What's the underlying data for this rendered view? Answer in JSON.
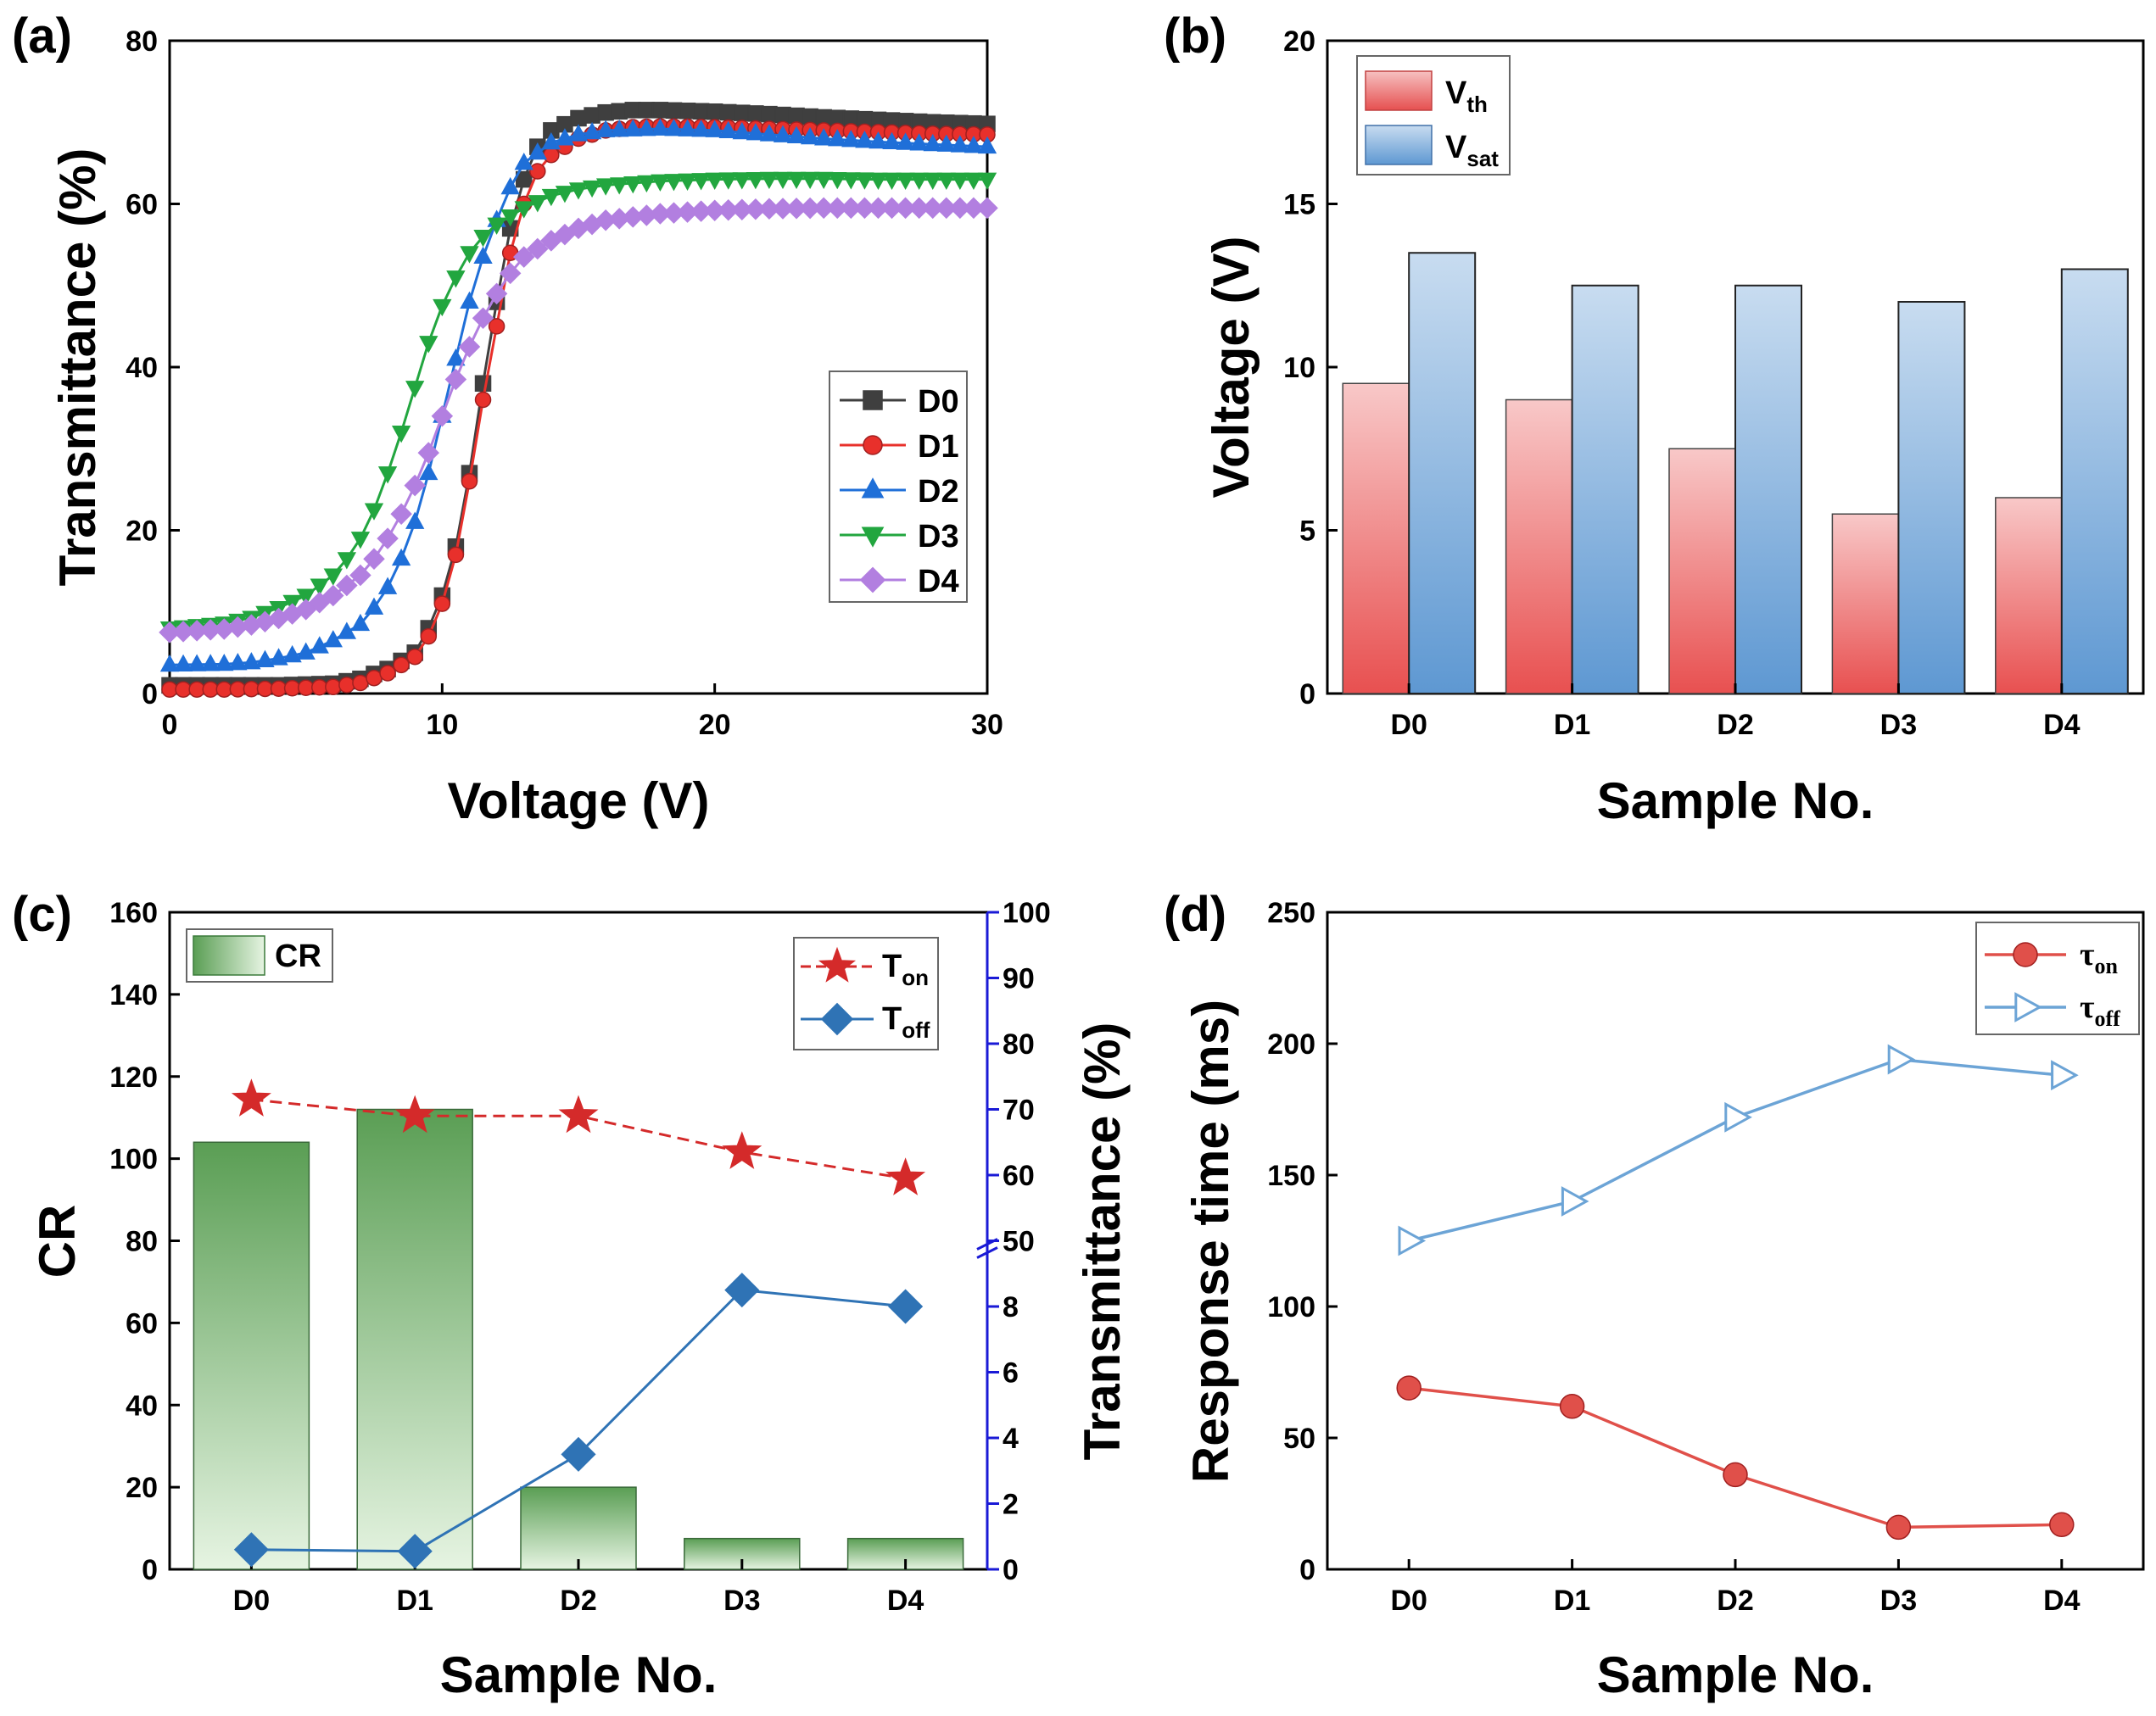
{
  "colors": {
    "D0": "#3f3f3f",
    "D1": "#e8302b",
    "D2": "#1f6fd8",
    "D3": "#22a63f",
    "D4": "#b27fe0",
    "vth": "#e85a5a",
    "vsat": "#6a9fd3",
    "cr": "#5aa25a",
    "ton": "#d42a2a",
    "toff": "#2f73b5",
    "tau_on": "#e0504a",
    "tau_off": "#6ca4d6",
    "right_axis": "#1a1ad6"
  },
  "chart_data": [
    {
      "panel": "(a)",
      "type": "line",
      "xlabel": "Voltage (V)",
      "ylabel": "Transmittance (%)",
      "xlim": [
        0,
        30
      ],
      "ylim": [
        0,
        80
      ],
      "xticks": [
        "0",
        "10",
        "20",
        "30"
      ],
      "yticks": [
        "0",
        "20",
        "40",
        "60",
        "80"
      ],
      "legend_position": "center-right",
      "series": [
        {
          "name": "D0",
          "marker": "square",
          "points": [
            [
              0,
              1
            ],
            [
              2,
              1
            ],
            [
              4,
              1
            ],
            [
              6,
              1.2
            ],
            [
              7,
              1.8
            ],
            [
              8,
              3
            ],
            [
              9,
              5
            ],
            [
              9.5,
              8
            ],
            [
              10,
              12
            ],
            [
              10.5,
              18
            ],
            [
              11,
              27
            ],
            [
              11.5,
              38
            ],
            [
              12,
              48
            ],
            [
              12.5,
              57
            ],
            [
              13,
              63
            ],
            [
              13.5,
              67
            ],
            [
              14,
              69
            ],
            [
              15,
              70.5
            ],
            [
              16,
              71.2
            ],
            [
              17,
              71.5
            ],
            [
              18,
              71.5
            ],
            [
              20,
              71.3
            ],
            [
              22,
              71
            ],
            [
              24,
              70.6
            ],
            [
              26,
              70.3
            ],
            [
              28,
              70
            ],
            [
              30,
              69.8
            ]
          ]
        },
        {
          "name": "D1",
          "marker": "circle",
          "points": [
            [
              0,
              0.5
            ],
            [
              2,
              0.5
            ],
            [
              4,
              0.6
            ],
            [
              6,
              0.8
            ],
            [
              7,
              1.3
            ],
            [
              8,
              2.5
            ],
            [
              9,
              4.5
            ],
            [
              9.5,
              7
            ],
            [
              10,
              11
            ],
            [
              10.5,
              17
            ],
            [
              11,
              26
            ],
            [
              11.5,
              36
            ],
            [
              12,
              45
            ],
            [
              12.5,
              54
            ],
            [
              13,
              60
            ],
            [
              13.5,
              64
            ],
            [
              14,
              66
            ],
            [
              15,
              68
            ],
            [
              16,
              69
            ],
            [
              17,
              69.4
            ],
            [
              18,
              69.5
            ],
            [
              20,
              69.4
            ],
            [
              22,
              69.2
            ],
            [
              24,
              69
            ],
            [
              26,
              68.8
            ],
            [
              28,
              68.6
            ],
            [
              30,
              68.5
            ]
          ]
        },
        {
          "name": "D2",
          "marker": "triangle-up",
          "points": [
            [
              0,
              3.5
            ],
            [
              2,
              3.6
            ],
            [
              3,
              3.8
            ],
            [
              4,
              4.3
            ],
            [
              5,
              5
            ],
            [
              6,
              6.5
            ],
            [
              7,
              8.5
            ],
            [
              7.5,
              10.5
            ],
            [
              8,
              13
            ],
            [
              8.5,
              16.5
            ],
            [
              9,
              21
            ],
            [
              9.5,
              27
            ],
            [
              10,
              34
            ],
            [
              10.5,
              41
            ],
            [
              11,
              48
            ],
            [
              11.5,
              53.5
            ],
            [
              12,
              58
            ],
            [
              12.5,
              62
            ],
            [
              13,
              65
            ],
            [
              14,
              67.5
            ],
            [
              15,
              68.5
            ],
            [
              16,
              69
            ],
            [
              18,
              69.2
            ],
            [
              20,
              69
            ],
            [
              22,
              68.5
            ],
            [
              24,
              68
            ],
            [
              26,
              67.6
            ],
            [
              28,
              67.3
            ],
            [
              30,
              67
            ]
          ]
        },
        {
          "name": "D3",
          "marker": "triangle-down",
          "points": [
            [
              0,
              8
            ],
            [
              2,
              8.6
            ],
            [
              3,
              9.3
            ],
            [
              4,
              10.5
            ],
            [
              5,
              12
            ],
            [
              6,
              14.5
            ],
            [
              6.5,
              16.5
            ],
            [
              7,
              19
            ],
            [
              7.5,
              22.5
            ],
            [
              8,
              27
            ],
            [
              8.5,
              32
            ],
            [
              9,
              37.5
            ],
            [
              9.5,
              43
            ],
            [
              10,
              47.5
            ],
            [
              10.5,
              51
            ],
            [
              11,
              54
            ],
            [
              11.5,
              56
            ],
            [
              12,
              57.5
            ],
            [
              13,
              59.5
            ],
            [
              14,
              61
            ],
            [
              15,
              61.8
            ],
            [
              16,
              62.3
            ],
            [
              18,
              62.8
            ],
            [
              20,
              63
            ],
            [
              22,
              63.1
            ],
            [
              24,
              63.1
            ],
            [
              26,
              63
            ],
            [
              28,
              63
            ],
            [
              30,
              63
            ]
          ]
        },
        {
          "name": "D4",
          "marker": "diamond",
          "points": [
            [
              0,
              7.5
            ],
            [
              2,
              7.9
            ],
            [
              3,
              8.4
            ],
            [
              4,
              9.2
            ],
            [
              5,
              10.3
            ],
            [
              6,
              12
            ],
            [
              7,
              14.5
            ],
            [
              7.5,
              16.5
            ],
            [
              8,
              19
            ],
            [
              8.5,
              22
            ],
            [
              9,
              25.5
            ],
            [
              9.5,
              29.5
            ],
            [
              10,
              34
            ],
            [
              10.5,
              38.5
            ],
            [
              11,
              42.5
            ],
            [
              11.5,
              46
            ],
            [
              12,
              49
            ],
            [
              12.5,
              51.5
            ],
            [
              13,
              53.5
            ],
            [
              14,
              55.5
            ],
            [
              15,
              57
            ],
            [
              16,
              58
            ],
            [
              18,
              58.8
            ],
            [
              20,
              59.2
            ],
            [
              22,
              59.4
            ],
            [
              24,
              59.5
            ],
            [
              26,
              59.5
            ],
            [
              28,
              59.5
            ],
            [
              30,
              59.5
            ]
          ]
        }
      ]
    },
    {
      "panel": "(b)",
      "type": "bar",
      "xlabel": "Sample No.",
      "ylabel": "Voltage (V)",
      "ylim": [
        0,
        20
      ],
      "yticks": [
        "0",
        "5",
        "10",
        "15",
        "20"
      ],
      "categories": [
        "D0",
        "D1",
        "D2",
        "D3",
        "D4"
      ],
      "legend_position": "top-left",
      "series": [
        {
          "name": "V",
          "sub": "th",
          "values": [
            9.5,
            9.0,
            7.5,
            5.5,
            6.0
          ]
        },
        {
          "name": "V",
          "sub": "sat",
          "values": [
            13.5,
            12.5,
            12.5,
            12.0,
            13.0
          ]
        }
      ]
    },
    {
      "panel": "(c)",
      "type": "bar",
      "xlabel": "Sample No.",
      "ylabel": "CR",
      "ylabel_right": "Transmittance (%)",
      "ylim": [
        0,
        160
      ],
      "yticks": [
        "0",
        "20",
        "40",
        "60",
        "80",
        "100",
        "120",
        "140",
        "160"
      ],
      "yticks_right": [
        "0",
        "2",
        "4",
        "6",
        "8",
        "50",
        "60",
        "70",
        "80",
        "90",
        "100"
      ],
      "right_axis_note": "broken axis: 0–10 on lower half, 50–100 on upper half",
      "categories": [
        "D0",
        "D1",
        "D2",
        "D3",
        "D4"
      ],
      "bar_series": {
        "name": "CR",
        "values": [
          104,
          112,
          20,
          7.5,
          7.5
        ]
      },
      "line_series": [
        {
          "name": "T",
          "sub": "on",
          "marker": "star",
          "axis": "right",
          "values": [
            71.5,
            69,
            69,
            63.5,
            59.5
          ]
        },
        {
          "name": "T",
          "sub": "off",
          "marker": "diamond",
          "axis": "right",
          "values": [
            0.6,
            0.55,
            3.5,
            8.5,
            8.0
          ]
        }
      ]
    },
    {
      "panel": "(d)",
      "type": "line",
      "xlabel": "Sample No.",
      "ylabel": "Response time (ms)",
      "ylim": [
        0,
        250
      ],
      "yticks": [
        "0",
        "50",
        "100",
        "150",
        "200",
        "250"
      ],
      "categories": [
        "D0",
        "D1",
        "D2",
        "D3",
        "D4"
      ],
      "legend_position": "top-right",
      "series": [
        {
          "name": "τ",
          "sub": "on",
          "marker": "circle",
          "values": [
            69,
            62,
            36,
            16,
            17
          ]
        },
        {
          "name": "τ",
          "sub": "off",
          "marker": "triangle-right",
          "values": [
            125,
            140,
            172,
            194,
            188
          ]
        }
      ]
    }
  ]
}
